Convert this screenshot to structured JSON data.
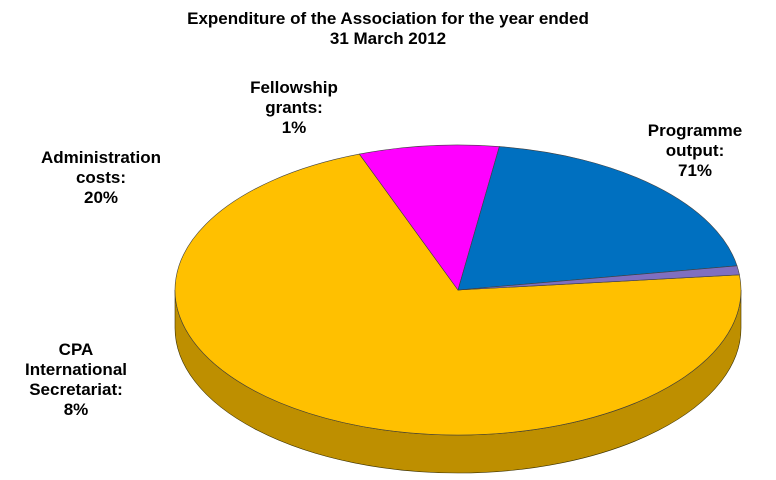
{
  "chart_data": {
    "type": "pie",
    "title_lines": [
      "Expenditure of the Association for the year ended",
      "31 March 2012"
    ],
    "slices": [
      {
        "label_lines": [
          "Programme",
          "output:",
          "71%"
        ],
        "name": "Programme output",
        "value": 71,
        "color": "#FFC000",
        "side_color": "#BE8F00"
      },
      {
        "label_lines": [
          "CPA",
          "International",
          "Secretariat:",
          "8%"
        ],
        "name": "CPA International Secretariat",
        "value": 8,
        "color": "#FF00FF",
        "side_color": "#C000C0"
      },
      {
        "label_lines": [
          "Administration",
          "costs:",
          "20%"
        ],
        "name": "Administration costs",
        "value": 20,
        "color": "#0070C0",
        "side_color": "#004F88"
      },
      {
        "label_lines": [
          "Fellowship",
          "grants:",
          "1%"
        ],
        "name": "Fellowship grants",
        "value": 1,
        "color": "#7F6FC0",
        "side_color": "#5A4F8F"
      }
    ],
    "start_angle_deg": -6,
    "style": "3d"
  }
}
